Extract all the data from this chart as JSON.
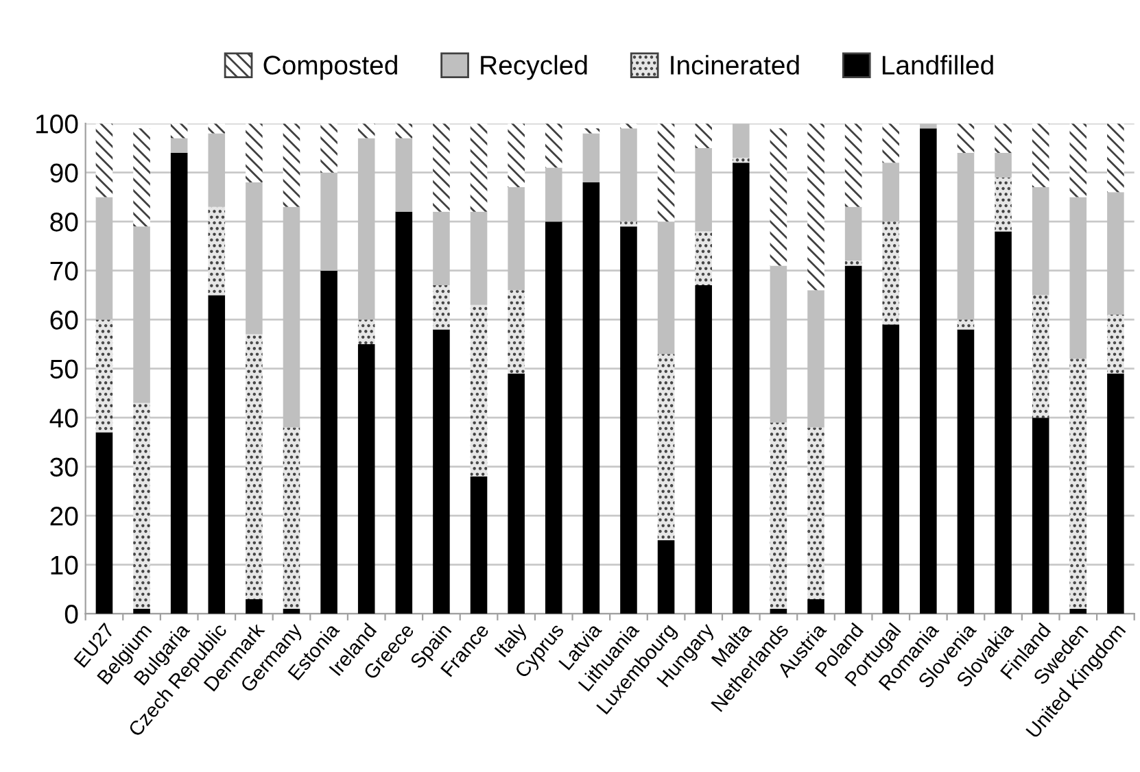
{
  "chart_data": {
    "type": "bar",
    "stacked": true,
    "categories": [
      "EU27",
      "Belgium",
      "Bulgaria",
      "Czech Republic",
      "Denmark",
      "Germany",
      "Estonia",
      "Ireland",
      "Greece",
      "Spain",
      "France",
      "Italy",
      "Cyprus",
      "Latvia",
      "Lithuania",
      "Luxembourg",
      "Hungary",
      "Malta",
      "Netherlands",
      "Austria",
      "Poland",
      "Portugal",
      "Romania",
      "Slovenia",
      "Slovakia",
      "Finland",
      "Sweden",
      "United Kingdom"
    ],
    "series": [
      {
        "name": "Landfilled",
        "color": "#000000",
        "values": [
          37,
          1,
          94,
          65,
          3,
          1,
          70,
          55,
          82,
          58,
          28,
          49,
          80,
          88,
          79,
          15,
          67,
          92,
          1,
          3,
          71,
          59,
          99,
          58,
          78,
          40,
          1,
          49
        ]
      },
      {
        "name": "Incinerated",
        "color": "#e6e6e6",
        "values": [
          23,
          42,
          0,
          18,
          54,
          37,
          0,
          5,
          0,
          9,
          35,
          17,
          0,
          0,
          1,
          38,
          11,
          1,
          38,
          35,
          1,
          21,
          0,
          2,
          11,
          25,
          51,
          12
        ]
      },
      {
        "name": "Recycled",
        "color": "#bfbfbf",
        "values": [
          25,
          36,
          3,
          15,
          31,
          45,
          20,
          37,
          15,
          15,
          19,
          21,
          11,
          10,
          19,
          27,
          17,
          7,
          32,
          28,
          11,
          12,
          1,
          34,
          5,
          22,
          33,
          25
        ]
      },
      {
        "name": "Composted",
        "color": "#ffffff",
        "values": [
          15,
          20,
          3,
          2,
          12,
          17,
          10,
          3,
          3,
          18,
          18,
          13,
          9,
          1,
          1,
          20,
          5,
          0,
          28,
          34,
          17,
          8,
          0,
          6,
          6,
          13,
          15,
          14
        ]
      }
    ],
    "ylim": [
      0,
      100
    ],
    "yticks": [
      0,
      10,
      20,
      30,
      40,
      50,
      60,
      70,
      80,
      90,
      100
    ],
    "grid": "y",
    "legend": "top"
  }
}
